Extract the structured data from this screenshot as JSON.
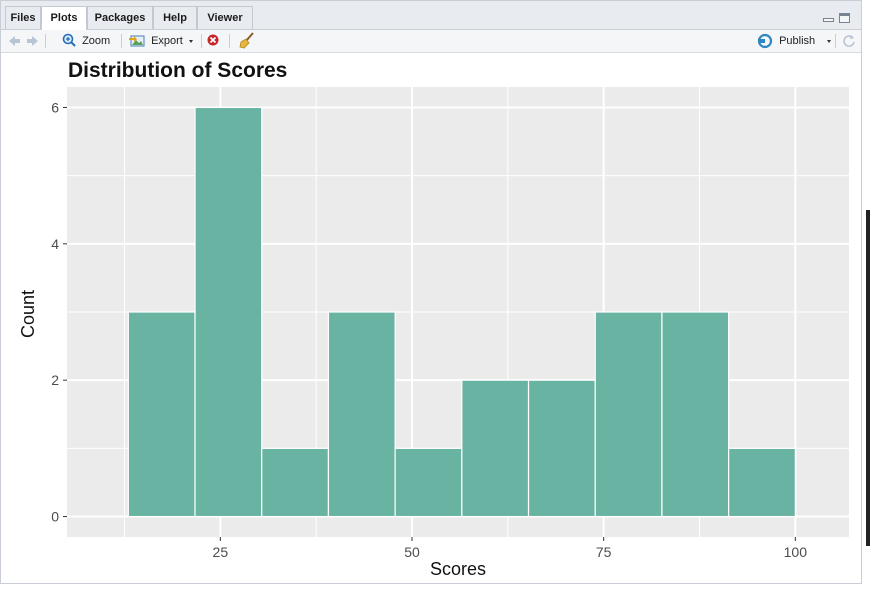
{
  "tabs": [
    {
      "label": "Files",
      "active": false
    },
    {
      "label": "Plots",
      "active": true
    },
    {
      "label": "Packages",
      "active": false
    },
    {
      "label": "Help",
      "active": false
    },
    {
      "label": "Viewer",
      "active": false
    }
  ],
  "toolbar": {
    "zoom_label": "Zoom",
    "export_label": "Export",
    "publish_label": "Publish"
  },
  "icons": {
    "back": "arrow-left-icon",
    "forward": "arrow-right-icon",
    "zoom": "magnifier-icon",
    "export": "export-image-icon",
    "remove": "remove-plot-icon",
    "clear": "broom-icon",
    "publish": "publish-icon",
    "refresh": "refresh-icon",
    "minimize": "minimize-icon",
    "maximize": "maximize-icon"
  },
  "colors": {
    "bar_fill": "#69b3a2",
    "panel_bg": "#ebebeb",
    "grid": "#ffffff"
  },
  "chart_data": {
    "type": "bar",
    "title": "Distribution of Scores",
    "xlabel": "Scores",
    "ylabel": "Count",
    "bins": [
      {
        "start": 13,
        "end": 21.7,
        "count": 3
      },
      {
        "start": 21.7,
        "end": 30.4,
        "count": 6
      },
      {
        "start": 30.4,
        "end": 39.1,
        "count": 1
      },
      {
        "start": 39.1,
        "end": 47.8,
        "count": 3
      },
      {
        "start": 47.8,
        "end": 56.5,
        "count": 1
      },
      {
        "start": 56.5,
        "end": 65.2,
        "count": 2
      },
      {
        "start": 65.2,
        "end": 73.9,
        "count": 2
      },
      {
        "start": 73.9,
        "end": 82.6,
        "count": 3
      },
      {
        "start": 82.6,
        "end": 91.3,
        "count": 3
      },
      {
        "start": 91.3,
        "end": 100,
        "count": 1
      }
    ],
    "xlim": [
      5,
      107
    ],
    "ylim": [
      -0.3,
      6.3
    ],
    "x_ticks": [
      25,
      50,
      75,
      100
    ],
    "y_ticks": [
      0,
      2,
      4,
      6
    ],
    "grid": true,
    "legend": "none"
  }
}
